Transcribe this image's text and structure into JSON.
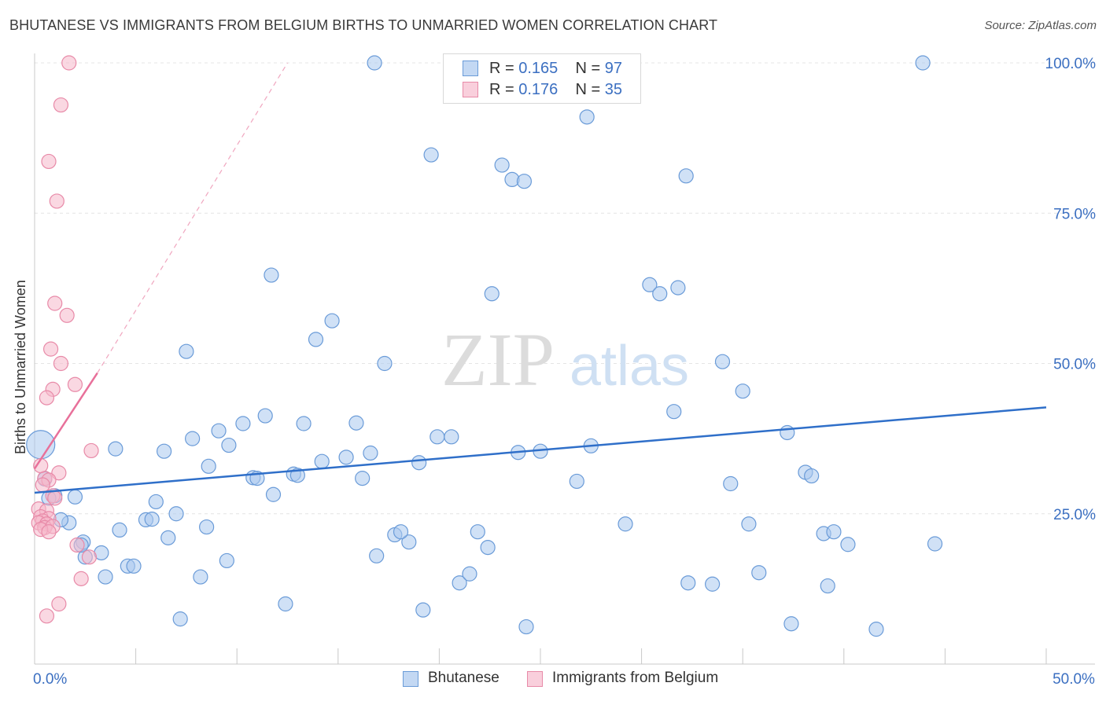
{
  "title": "BHUTANESE VS IMMIGRANTS FROM BELGIUM BIRTHS TO UNMARRIED WOMEN CORRELATION CHART",
  "source": "Source: ZipAtlas.com",
  "watermark": {
    "left": "ZIP",
    "right": "atlas"
  },
  "legend": {
    "r_label": "R =",
    "n_label": "N =",
    "entries": [
      {
        "r": "0.165",
        "n": "97",
        "color": "#a9c8ef",
        "stroke": "#6a9bd8"
      },
      {
        "r": "0.176",
        "n": "35",
        "color": "#f5b8cb",
        "stroke": "#e88aa8"
      }
    ]
  },
  "chart_data": {
    "type": "scatter",
    "title": "BHUTANESE VS IMMIGRANTS FROM BELGIUM BIRTHS TO UNMARRIED WOMEN CORRELATION CHART",
    "xlabel": "",
    "ylabel": "Births to Unmarried Women",
    "xlim": [
      0,
      50
    ],
    "ylim": [
      0,
      100
    ],
    "x_tick_labels": [
      {
        "value": 0,
        "label": "0.0%"
      },
      {
        "value": 50,
        "label": "50.0%"
      }
    ],
    "y_tick_labels": [
      {
        "value": 25,
        "label": "25.0%"
      },
      {
        "value": 50,
        "label": "50.0%"
      },
      {
        "value": 75,
        "label": "75.0%"
      },
      {
        "value": 100,
        "label": "100.0%"
      }
    ],
    "grid": true,
    "series": [
      {
        "name": "Bhutanese",
        "color": "#a9c8ef",
        "stroke": "#6a9bd8",
        "trend": {
          "x": [
            0,
            50
          ],
          "y": [
            28.5,
            42.7
          ],
          "color": "#2f6fc9"
        },
        "points": [
          [
            0.3,
            36.5
          ],
          [
            0.5,
            30.8
          ],
          [
            1.0,
            28.0
          ],
          [
            1.7,
            23.5
          ],
          [
            2.4,
            20.3
          ],
          [
            2.5,
            17.8
          ],
          [
            3.5,
            14.5
          ],
          [
            4.2,
            22.3
          ],
          [
            4.6,
            16.3
          ],
          [
            5.5,
            24.0
          ],
          [
            6.0,
            27.0
          ],
          [
            6.6,
            21.0
          ],
          [
            7.2,
            7.5
          ],
          [
            7.8,
            37.5
          ],
          [
            8.6,
            32.9
          ],
          [
            9.1,
            38.8
          ],
          [
            9.6,
            36.4
          ],
          [
            10.3,
            40.0
          ],
          [
            10.8,
            31.0
          ],
          [
            11.4,
            41.3
          ],
          [
            11.7,
            64.7
          ],
          [
            12.4,
            10.0
          ],
          [
            12.8,
            31.6
          ],
          [
            13.3,
            40.0
          ],
          [
            13.9,
            54.0
          ],
          [
            14.2,
            33.7
          ],
          [
            14.7,
            57.1
          ],
          [
            15.4,
            34.4
          ],
          [
            15.9,
            40.1
          ],
          [
            16.6,
            35.1
          ],
          [
            16.2,
            30.9
          ],
          [
            16.9,
            18.0
          ],
          [
            17.3,
            50.0
          ],
          [
            17.8,
            21.5
          ],
          [
            18.5,
            20.3
          ],
          [
            16.8,
            100.0
          ],
          [
            19.0,
            33.5
          ],
          [
            19.6,
            84.7
          ],
          [
            19.2,
            9.0
          ],
          [
            19.9,
            37.8
          ],
          [
            20.6,
            37.8
          ],
          [
            21.0,
            13.5
          ],
          [
            21.5,
            15.0
          ],
          [
            21.9,
            22.0
          ],
          [
            22.4,
            19.4
          ],
          [
            22.6,
            61.6
          ],
          [
            23.1,
            83.0
          ],
          [
            23.6,
            80.6
          ],
          [
            24.2,
            80.3
          ],
          [
            23.9,
            35.2
          ],
          [
            25.0,
            35.4
          ],
          [
            24.3,
            6.2
          ],
          [
            26.8,
            30.4
          ],
          [
            27.5,
            36.3
          ],
          [
            27.3,
            91.0
          ],
          [
            29.2,
            23.3
          ],
          [
            30.4,
            63.1
          ],
          [
            30.9,
            61.6
          ],
          [
            31.6,
            42.0
          ],
          [
            31.8,
            62.6
          ],
          [
            32.2,
            81.2
          ],
          [
            32.3,
            13.5
          ],
          [
            33.5,
            13.3
          ],
          [
            34.0,
            50.3
          ],
          [
            34.4,
            30.0
          ],
          [
            35.0,
            45.4
          ],
          [
            35.3,
            23.3
          ],
          [
            35.8,
            15.2
          ],
          [
            37.2,
            38.5
          ],
          [
            37.4,
            6.7
          ],
          [
            38.1,
            31.9
          ],
          [
            38.4,
            31.3
          ],
          [
            39.0,
            21.7
          ],
          [
            39.5,
            22.0
          ],
          [
            39.2,
            13.0
          ],
          [
            40.2,
            19.9
          ],
          [
            41.6,
            5.8
          ],
          [
            43.9,
            100.0
          ],
          [
            44.5,
            20.0
          ],
          [
            2.3,
            19.8
          ],
          [
            2.0,
            27.8
          ],
          [
            3.3,
            18.5
          ],
          [
            4.9,
            16.3
          ],
          [
            5.8,
            24.1
          ],
          [
            7.0,
            25.0
          ],
          [
            8.5,
            22.8
          ],
          [
            9.5,
            17.2
          ],
          [
            13.0,
            31.4
          ],
          [
            7.5,
            52.0
          ],
          [
            11.0,
            30.9
          ],
          [
            6.4,
            35.4
          ],
          [
            4.0,
            35.8
          ],
          [
            8.2,
            14.5
          ],
          [
            0.7,
            27.6
          ],
          [
            1.3,
            24.0
          ],
          [
            18.1,
            22.0
          ],
          [
            11.8,
            28.2
          ]
        ]
      },
      {
        "name": "Immigrants from Belgium",
        "color": "#f5b8cb",
        "stroke": "#e88aa8",
        "trend": {
          "x": [
            0,
            3.1
          ],
          "y": [
            32.5,
            48.4
          ],
          "x_dashed_end": 12.5,
          "y_dashed_end": 100,
          "color": "#e8709a"
        },
        "points": [
          [
            1.7,
            100.0
          ],
          [
            1.3,
            93.0
          ],
          [
            0.7,
            83.6
          ],
          [
            1.1,
            77.0
          ],
          [
            1.0,
            60.0
          ],
          [
            1.6,
            58.0
          ],
          [
            0.8,
            52.4
          ],
          [
            1.3,
            50.0
          ],
          [
            0.9,
            45.7
          ],
          [
            0.6,
            44.3
          ],
          [
            2.0,
            46.5
          ],
          [
            2.8,
            35.5
          ],
          [
            1.2,
            31.8
          ],
          [
            0.5,
            30.9
          ],
          [
            0.7,
            30.6
          ],
          [
            0.4,
            29.8
          ],
          [
            0.9,
            28.0
          ],
          [
            1.0,
            27.6
          ],
          [
            0.2,
            25.8
          ],
          [
            0.6,
            25.5
          ],
          [
            0.3,
            24.5
          ],
          [
            0.7,
            24.2
          ],
          [
            0.4,
            23.8
          ],
          [
            0.2,
            23.5
          ],
          [
            0.6,
            23.3
          ],
          [
            0.5,
            22.7
          ],
          [
            0.9,
            22.9
          ],
          [
            0.3,
            22.4
          ],
          [
            0.7,
            22.0
          ],
          [
            2.1,
            19.8
          ],
          [
            2.7,
            17.8
          ],
          [
            2.3,
            14.2
          ],
          [
            1.2,
            10.0
          ],
          [
            0.6,
            8.0
          ],
          [
            0.3,
            33.0
          ]
        ]
      }
    ]
  },
  "axis_labels": {
    "y": "Births to Unmarried Women",
    "x_left": "0.0%",
    "x_right": "50.0%",
    "y_ticks": [
      "100.0%",
      "75.0%",
      "50.0%",
      "25.0%"
    ]
  }
}
